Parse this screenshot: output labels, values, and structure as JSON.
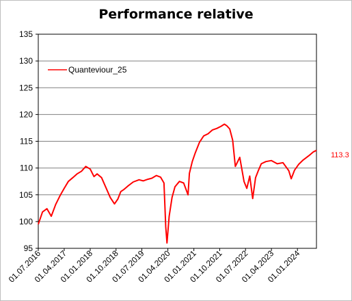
{
  "chart_data": {
    "type": "line",
    "title": "Performance relative",
    "xlabel": "",
    "ylabel": "",
    "ylim": [
      95,
      135
    ],
    "yticks": [
      95,
      100,
      105,
      110,
      115,
      120,
      125,
      130,
      135
    ],
    "xtick_labels": [
      "01.07.2016",
      "01.04.2017",
      "01.01.2018",
      "01.10.2018",
      "01.07.2019",
      "01.04.2020",
      "01.01.2021",
      "01.10.2021",
      "01.07.2022",
      "01.04.2023",
      "01.01.2024"
    ],
    "xlim": [
      "2016-07-01",
      "2024-07-20"
    ],
    "grid": "horizontal",
    "legend_position": "top-left",
    "last_value_label": "113.3",
    "series": [
      {
        "name": "Quanteviour_25",
        "color": "#ff0000",
        "x": [
          "2016-07-01",
          "2016-08-15",
          "2016-10-01",
          "2016-11-15",
          "2017-01-01",
          "2017-02-15",
          "2017-04-01",
          "2017-05-15",
          "2017-07-01",
          "2017-08-15",
          "2017-10-01",
          "2017-11-15",
          "2018-01-01",
          "2018-02-10",
          "2018-03-15",
          "2018-05-01",
          "2018-06-15",
          "2018-08-01",
          "2018-09-15",
          "2018-10-20",
          "2018-11-20",
          "2018-12-24",
          "2019-02-01",
          "2019-04-01",
          "2019-06-01",
          "2019-07-15",
          "2019-09-01",
          "2019-10-15",
          "2019-12-01",
          "2020-01-15",
          "2020-02-20",
          "2020-03-10",
          "2020-03-23",
          "2020-04-15",
          "2020-05-15",
          "2020-06-15",
          "2020-08-01",
          "2020-09-15",
          "2020-10-31",
          "2020-11-15",
          "2020-12-15",
          "2021-01-15",
          "2021-03-01",
          "2021-04-15",
          "2021-06-01",
          "2021-07-15",
          "2021-09-01",
          "2021-10-15",
          "2021-11-20",
          "2021-12-15",
          "2022-01-15",
          "2022-02-15",
          "2022-03-15",
          "2022-05-01",
          "2022-06-15",
          "2022-07-15",
          "2022-08-15",
          "2022-09-15",
          "2022-10-15",
          "2022-11-15",
          "2022-12-15",
          "2023-02-01",
          "2023-04-01",
          "2023-06-01",
          "2023-08-01",
          "2023-10-01",
          "2023-10-27",
          "2023-12-01",
          "2024-01-15",
          "2024-03-01",
          "2024-05-01",
          "2024-06-15",
          "2024-07-20"
        ],
        "values": [
          99.5,
          101.8,
          102.4,
          101.0,
          103.2,
          104.8,
          106.2,
          107.5,
          108.2,
          108.9,
          109.4,
          110.3,
          109.8,
          108.4,
          108.9,
          108.2,
          106.4,
          104.5,
          103.3,
          104.2,
          105.6,
          106.0,
          106.6,
          107.4,
          107.8,
          107.6,
          107.9,
          108.1,
          108.6,
          108.3,
          107.2,
          99.0,
          96.0,
          101.0,
          104.5,
          106.5,
          107.5,
          107.2,
          105.0,
          109.0,
          111.2,
          112.8,
          114.8,
          116.0,
          116.4,
          117.1,
          117.4,
          117.8,
          118.2,
          117.9,
          117.3,
          115.2,
          110.3,
          112.0,
          107.5,
          106.2,
          108.5,
          104.3,
          108.2,
          109.6,
          110.8,
          111.2,
          111.4,
          110.8,
          111.0,
          109.5,
          108.0,
          109.6,
          110.7,
          111.5,
          112.3,
          113.0,
          113.3
        ]
      }
    ]
  }
}
